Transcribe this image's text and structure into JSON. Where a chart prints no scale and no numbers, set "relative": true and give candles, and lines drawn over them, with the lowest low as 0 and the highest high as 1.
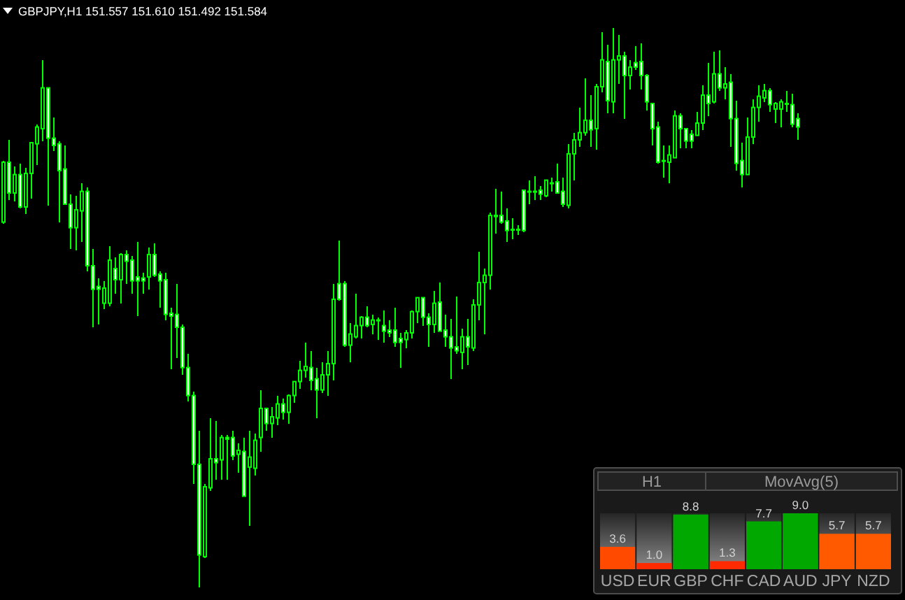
{
  "chart_data": [
    {
      "type": "candlestick",
      "title": "GBPJPY,H1 151.557 151.610 151.492 151.584",
      "relative": true,
      "color": "#00ff00",
      "categories": [
        null,
        null,
        null,
        null,
        null,
        null,
        null,
        null,
        null,
        null,
        null,
        null,
        null,
        null,
        null,
        null,
        null,
        null,
        null,
        null,
        null,
        null,
        null,
        null,
        null,
        null,
        null,
        null,
        null,
        null,
        null,
        null,
        null,
        null,
        null,
        null,
        null,
        null,
        null,
        null,
        null,
        null,
        null,
        null,
        null,
        null,
        null,
        null,
        null,
        null,
        null,
        null,
        null,
        null,
        null,
        null,
        null,
        null,
        null,
        null,
        null,
        null,
        null,
        null,
        null,
        null,
        null,
        null,
        null,
        null,
        null,
        null,
        null,
        null,
        null,
        null,
        null,
        null,
        null,
        null,
        null,
        null,
        null,
        null,
        null,
        null,
        null,
        null,
        null,
        null,
        null,
        null,
        null,
        null,
        null,
        null,
        null,
        null,
        null,
        null,
        null,
        null,
        null,
        null,
        null,
        null,
        null,
        null,
        null,
        null,
        null,
        null,
        null,
        null,
        null,
        null,
        null,
        null,
        null,
        null,
        null,
        null,
        null,
        null,
        null,
        null,
        null,
        null,
        null,
        null,
        null,
        null,
        null,
        null,
        null,
        null,
        null,
        null,
        null,
        null,
        null,
        null,
        null
      ],
      "ohlc": [
        [
          0.653,
          0.763,
          0.65,
          0.76
        ],
        [
          0.76,
          0.8,
          0.693,
          0.705
        ],
        [
          0.705,
          0.753,
          0.69,
          0.738
        ],
        [
          0.738,
          0.758,
          0.678,
          0.68
        ],
        [
          0.68,
          0.75,
          0.668,
          0.74
        ],
        [
          0.74,
          0.795,
          0.695,
          0.795
        ],
        [
          0.793,
          0.828,
          0.755,
          0.823
        ],
        [
          0.82,
          0.943,
          0.798,
          0.893
        ],
        [
          0.893,
          0.893,
          0.683,
          0.803
        ],
        [
          0.803,
          0.84,
          0.78,
          0.79
        ],
        [
          0.793,
          0.798,
          0.653,
          0.745
        ],
        [
          0.748,
          0.79,
          0.685,
          0.685
        ],
        [
          0.685,
          0.703,
          0.605,
          0.643
        ],
        [
          0.643,
          0.7,
          0.603,
          0.675
        ],
        [
          0.673,
          0.723,
          0.618,
          0.708
        ],
        [
          0.708,
          0.715,
          0.565,
          0.575
        ],
        [
          0.575,
          0.605,
          0.465,
          0.533
        ],
        [
          0.538,
          0.553,
          0.47,
          0.533
        ],
        [
          0.508,
          0.548,
          0.498,
          0.535
        ],
        [
          0.508,
          0.61,
          0.503,
          0.585
        ],
        [
          0.57,
          0.59,
          0.525,
          0.55
        ],
        [
          0.55,
          0.598,
          0.508,
          0.595
        ],
        [
          0.595,
          0.603,
          0.543,
          0.583
        ],
        [
          0.585,
          0.593,
          0.525,
          0.548
        ],
        [
          0.555,
          0.618,
          0.485,
          0.548
        ],
        [
          0.553,
          0.563,
          0.525,
          0.548
        ],
        [
          0.555,
          0.608,
          0.533,
          0.595
        ],
        [
          0.595,
          0.615,
          0.555,
          0.558
        ],
        [
          0.56,
          0.565,
          0.5,
          0.548
        ],
        [
          0.55,
          0.563,
          0.478,
          0.488
        ],
        [
          0.49,
          0.5,
          0.39,
          0.485
        ],
        [
          0.488,
          0.543,
          0.41,
          0.465
        ],
        [
          0.465,
          0.47,
          0.38,
          0.393
        ],
        [
          0.393,
          0.418,
          0.333,
          0.343
        ],
        [
          0.343,
          0.35,
          0.185,
          0.22
        ],
        [
          0.22,
          0.28,
          0,
          0.058
        ],
        [
          0.055,
          0.185,
          0.053,
          0.18
        ],
        [
          0.178,
          0.303,
          0.173,
          0.23
        ],
        [
          0.23,
          0.298,
          0.193,
          0.223
        ],
        [
          0.228,
          0.273,
          0.193,
          0.268
        ],
        [
          0.268,
          0.273,
          0.193,
          0.265
        ],
        [
          0.268,
          0.28,
          0.228,
          0.235
        ],
        [
          0.238,
          0.258,
          0.205,
          0.245
        ],
        [
          0.243,
          0.268,
          0.163,
          0.163
        ],
        [
          0.215,
          0.28,
          0.11,
          0.233
        ],
        [
          0.213,
          0.275,
          0.2,
          0.263
        ],
        [
          0.268,
          0.353,
          0.243,
          0.32
        ],
        [
          0.32,
          0.32,
          0.28,
          0.293
        ],
        [
          0.293,
          0.323,
          0.268,
          0.305
        ],
        [
          0.303,
          0.343,
          0.29,
          0.328
        ],
        [
          0.328,
          0.338,
          0.3,
          0.313
        ],
        [
          0.313,
          0.345,
          0.293,
          0.343
        ],
        [
          0.343,
          0.368,
          0.33,
          0.368
        ],
        [
          0.368,
          0.405,
          0.355,
          0.388
        ],
        [
          0.388,
          0.438,
          0.375,
          0.395
        ],
        [
          0.393,
          0.423,
          0.353,
          0.37
        ],
        [
          0.373,
          0.393,
          0.303,
          0.353
        ],
        [
          0.353,
          0.403,
          0.348,
          0.38
        ],
        [
          0.38,
          0.423,
          0.343,
          0.4
        ],
        [
          0.4,
          0.543,
          0.37,
          0.515
        ],
        [
          0.543,
          0.62,
          0.513,
          0.515
        ],
        [
          0.543,
          0.548,
          0.43,
          0.433
        ],
        [
          0.433,
          0.473,
          0.403,
          0.453
        ],
        [
          0.448,
          0.525,
          0.445,
          0.468
        ],
        [
          0.468,
          0.485,
          0.445,
          0.483
        ],
        [
          0.483,
          0.503,
          0.465,
          0.468
        ],
        [
          0.47,
          0.488,
          0.453,
          0.478
        ],
        [
          0.478,
          0.483,
          0.443,
          0.478
        ],
        [
          0.468,
          0.495,
          0.438,
          0.458
        ],
        [
          0.46,
          0.478,
          0.448,
          0.455
        ],
        [
          0.46,
          0.5,
          0.43,
          0.438
        ],
        [
          0.445,
          0.455,
          0.393,
          0.438
        ],
        [
          0.443,
          0.46,
          0.428,
          0.455
        ],
        [
          0.455,
          0.495,
          0.445,
          0.493
        ],
        [
          0.493,
          0.518,
          0.473,
          0.518
        ],
        [
          0.518,
          0.518,
          0.468,
          0.483
        ],
        [
          0.483,
          0.49,
          0.43,
          0.47
        ],
        [
          0.47,
          0.53,
          0.455,
          0.508
        ],
        [
          0.51,
          0.545,
          0.458,
          0.458
        ],
        [
          0.46,
          0.488,
          0.43,
          0.448
        ],
        [
          0.448,
          0.48,
          0.373,
          0.428
        ],
        [
          0.43,
          0.52,
          0.418,
          0.423
        ],
        [
          0.42,
          0.463,
          0.39,
          0.448
        ],
        [
          0.448,
          0.48,
          0.398,
          0.43
        ],
        [
          0.428,
          0.515,
          0.423,
          0.505
        ],
        [
          0.505,
          0.6,
          0.478,
          0.545
        ],
        [
          0.545,
          0.57,
          0.453,
          0.558
        ],
        [
          0.558,
          0.67,
          0.533,
          0.665
        ],
        [
          0.665,
          0.713,
          0.633,
          0.663
        ],
        [
          0.665,
          0.708,
          0.65,
          0.653
        ],
        [
          0.655,
          0.678,
          0.618,
          0.638
        ],
        [
          0.64,
          0.66,
          0.623,
          0.64
        ],
        [
          0.64,
          0.648,
          0.63,
          0.64
        ],
        [
          0.71,
          0.71,
          0.635,
          0.638
        ],
        [
          0.708,
          0.728,
          0.685,
          0.708
        ],
        [
          0.708,
          0.735,
          0.693,
          0.708
        ],
        [
          0.71,
          0.718,
          0.693,
          0.703
        ],
        [
          0.7,
          0.728,
          0.698,
          0.728
        ],
        [
          0.723,
          0.733,
          0.708,
          0.723
        ],
        [
          0.725,
          0.758,
          0.705,
          0.705
        ],
        [
          0.708,
          0.733,
          0.68,
          0.685
        ],
        [
          0.683,
          0.793,
          0.678,
          0.775
        ],
        [
          0.775,
          0.813,
          0.728,
          0.8
        ],
        [
          0.8,
          0.858,
          0.788,
          0.813
        ],
        [
          0.813,
          0.91,
          0.808,
          0.835
        ],
        [
          0.835,
          0.88,
          0.788,
          0.818
        ],
        [
          0.82,
          0.9,
          0.783,
          0.895
        ],
        [
          0.895,
          0.993,
          0.885,
          0.943
        ],
        [
          0.94,
          0.97,
          0.848,
          0.87
        ],
        [
          0.868,
          1,
          0.848,
          0.943
        ],
        [
          0.943,
          0.988,
          0.9,
          0.95
        ],
        [
          0.95,
          0.958,
          0.838,
          0.915
        ],
        [
          0.915,
          0.943,
          0.89,
          0.93
        ],
        [
          0.938,
          0.968,
          0.925,
          0.93
        ],
        [
          0.94,
          0.973,
          0.89,
          0.915
        ],
        [
          0.915,
          0.918,
          0.853,
          0.868
        ],
        [
          0.865,
          0.865,
          0.79,
          0.82
        ],
        [
          0.823,
          0.833,
          0.758,
          0.76
        ],
        [
          0.763,
          0.79,
          0.733,
          0.763
        ],
        [
          0.76,
          0.79,
          0.723,
          0.773
        ],
        [
          0.768,
          0.853,
          0.768,
          0.843
        ],
        [
          0.843,
          0.848,
          0.785,
          0.82
        ],
        [
          0.82,
          0.82,
          0.785,
          0.798
        ],
        [
          0.81,
          0.818,
          0.785,
          0.798
        ],
        [
          0.808,
          0.85,
          0.808,
          0.83
        ],
        [
          0.83,
          0.898,
          0.818,
          0.88
        ],
        [
          0.88,
          0.938,
          0.843,
          0.865
        ],
        [
          0.868,
          0.958,
          0.865,
          0.918
        ],
        [
          0.918,
          0.96,
          0.888,
          0.893
        ],
        [
          0.893,
          0.93,
          0.873,
          0.9
        ],
        [
          0.903,
          0.918,
          0.788,
          0.838
        ],
        [
          0.838,
          0.87,
          0.745,
          0.758
        ],
        [
          0.763,
          0.795,
          0.715,
          0.738
        ],
        [
          0.738,
          0.84,
          0.738,
          0.805
        ],
        [
          0.805,
          0.873,
          0.793,
          0.858
        ],
        [
          0.858,
          0.898,
          0.833,
          0.878
        ],
        [
          0.875,
          0.9,
          0.868,
          0.888
        ],
        [
          0.888,
          0.893,
          0.85,
          0.863
        ],
        [
          0.855,
          0.868,
          0.83,
          0.865
        ],
        [
          0.855,
          0.873,
          0.823,
          0.868
        ],
        [
          0.865,
          0.888,
          0.85,
          0.865
        ],
        [
          0.863,
          0.883,
          0.823,
          0.828
        ],
        [
          0.838,
          0.848,
          0.8,
          0.823
        ]
      ]
    },
    {
      "type": "bar",
      "title": "H1",
      "subtitle": "MovAvg(5)",
      "categories": [
        "USD",
        "EUR",
        "GBP",
        "CHF",
        "CAD",
        "AUD",
        "JPY",
        "NZD"
      ],
      "values": [
        3.6,
        1.0,
        8.8,
        1.3,
        7.7,
        9.0,
        5.7,
        5.7
      ],
      "value_labels": [
        "3.6",
        "1.0",
        "8.8",
        "1.3",
        "7.7",
        "9.0",
        "5.7",
        "5.7"
      ],
      "colors": [
        "#ff4a00",
        "#ff2a00",
        "#00a800",
        "#ff2a00",
        "#00a800",
        "#00a800",
        "#ff5a00",
        "#ff5a00"
      ]
    }
  ]
}
